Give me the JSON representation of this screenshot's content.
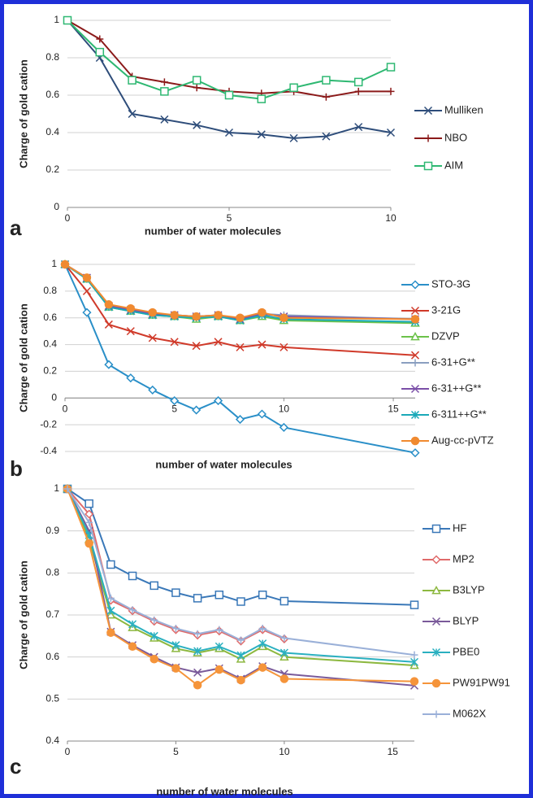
{
  "chart_data": [
    {
      "type": "line",
      "panel_label": "a",
      "x_label": "number of water molecules",
      "y_label": "Charge of gold cation",
      "x": [
        0,
        1,
        2,
        3,
        4,
        5,
        6,
        7,
        8,
        9,
        10
      ],
      "xlim": [
        0,
        10
      ],
      "xticks": [
        0,
        5,
        10
      ],
      "ylim": [
        0,
        1
      ],
      "yticks": [
        0,
        0.2,
        0.4,
        0.6,
        0.8,
        1
      ],
      "grid": true,
      "legend": "right",
      "series": [
        {
          "name": "Mulliken",
          "color": "#2e4d7a",
          "marker": "x",
          "values": [
            1,
            0.8,
            0.5,
            0.47,
            0.44,
            0.4,
            0.39,
            0.37,
            0.38,
            0.43,
            0.4
          ]
        },
        {
          "name": "NBO",
          "color": "#8b1a1a",
          "marker": "plus",
          "values": [
            1,
            0.9,
            0.7,
            0.67,
            0.64,
            0.62,
            0.61,
            0.62,
            0.59,
            0.62,
            0.62
          ]
        },
        {
          "name": "AIM",
          "color": "#2eb872",
          "marker": "square",
          "values": [
            1,
            0.83,
            0.68,
            0.62,
            0.68,
            0.6,
            0.58,
            0.64,
            0.68,
            0.67,
            0.75
          ]
        }
      ]
    },
    {
      "type": "line",
      "panel_label": "b",
      "x_label": "number of water molecules",
      "y_label": "Charge of gold cation",
      "x": [
        0,
        1,
        2,
        3,
        4,
        5,
        6,
        7,
        8,
        9,
        10,
        16
      ],
      "xlim": [
        0,
        16
      ],
      "xticks": [
        0,
        5,
        10,
        15
      ],
      "ylim": [
        -0.4,
        1
      ],
      "yticks": [
        -0.4,
        -0.2,
        0,
        0.2,
        0.4,
        0.6,
        0.8,
        1
      ],
      "grid": true,
      "legend": "right",
      "series": [
        {
          "name": "STO-3G",
          "color": "#2a8fc8",
          "marker": "diamond",
          "values": [
            1,
            0.64,
            0.25,
            0.15,
            0.06,
            -0.02,
            -0.09,
            -0.02,
            -0.16,
            -0.12,
            -0.22,
            -0.41
          ]
        },
        {
          "name": "3-21G",
          "color": "#d03a2a",
          "marker": "x",
          "values": [
            1,
            0.8,
            0.55,
            0.5,
            0.45,
            0.42,
            0.39,
            0.42,
            0.38,
            0.4,
            0.38,
            0.32
          ]
        },
        {
          "name": "DZVP",
          "color": "#6cc24a",
          "marker": "triangle",
          "values": [
            1,
            0.89,
            0.68,
            0.65,
            0.62,
            0.61,
            0.59,
            0.61,
            0.58,
            0.61,
            0.58,
            0.56
          ]
        },
        {
          "name": "6-31+G**",
          "color": "#8a9fc0",
          "marker": "plus",
          "values": [
            1,
            0.9,
            0.69,
            0.66,
            0.63,
            0.62,
            0.61,
            0.62,
            0.59,
            0.63,
            0.62,
            0.59
          ]
        },
        {
          "name": "6-31++G**",
          "color": "#7b4fa8",
          "marker": "x",
          "values": [
            1,
            0.9,
            0.69,
            0.66,
            0.63,
            0.62,
            0.61,
            0.62,
            0.59,
            0.63,
            0.61,
            0.59
          ]
        },
        {
          "name": "6-311++G**",
          "color": "#1aa9b8",
          "marker": "star",
          "values": [
            1,
            0.89,
            0.68,
            0.65,
            0.62,
            0.61,
            0.6,
            0.61,
            0.58,
            0.62,
            0.59,
            0.57
          ]
        },
        {
          "name": "Aug-cc-pVTZ",
          "color": "#f08a30",
          "marker": "circle",
          "values": [
            1,
            0.9,
            0.7,
            0.67,
            0.64,
            0.62,
            0.61,
            0.62,
            0.6,
            0.64,
            0.6,
            0.59
          ]
        }
      ]
    },
    {
      "type": "line",
      "panel_label": "c",
      "x_label": "number of water molecules",
      "y_label": "Charge of gold cation",
      "x": [
        0,
        1,
        2,
        3,
        4,
        5,
        6,
        7,
        8,
        9,
        10,
        16
      ],
      "xlim": [
        0,
        16
      ],
      "xticks": [
        0,
        5,
        10,
        15
      ],
      "ylim": [
        0.4,
        1
      ],
      "yticks": [
        0.4,
        0.5,
        0.6,
        0.7,
        0.8,
        0.9,
        1
      ],
      "grid": true,
      "legend": "right",
      "series": [
        {
          "name": "HF",
          "color": "#3a78b8",
          "marker": "square",
          "values": [
            1,
            0.965,
            0.82,
            0.793,
            0.77,
            0.753,
            0.74,
            0.748,
            0.732,
            0.748,
            0.733,
            0.724
          ]
        },
        {
          "name": "MP2",
          "color": "#e06a6a",
          "marker": "diamond",
          "values": [
            1,
            0.94,
            0.735,
            0.71,
            0.685,
            0.665,
            0.652,
            0.662,
            0.638,
            0.665,
            0.643,
            null
          ]
        },
        {
          "name": "B3LYP",
          "color": "#8db840",
          "marker": "triangle",
          "values": [
            1,
            0.88,
            0.7,
            0.67,
            0.645,
            0.62,
            0.61,
            0.62,
            0.595,
            0.625,
            0.6,
            0.58
          ]
        },
        {
          "name": "BLYP",
          "color": "#7a5a9a",
          "marker": "x",
          "values": [
            1,
            0.9,
            0.66,
            0.628,
            0.6,
            0.575,
            0.563,
            0.573,
            0.548,
            0.578,
            0.56,
            0.532
          ]
        },
        {
          "name": "PBE0",
          "color": "#2ab0c0",
          "marker": "star",
          "values": [
            1,
            0.89,
            0.71,
            0.678,
            0.65,
            0.628,
            0.614,
            0.625,
            0.604,
            0.632,
            0.61,
            0.588
          ]
        },
        {
          "name": "PW91PW91",
          "color": "#f5943a",
          "marker": "circle",
          "values": [
            1,
            0.87,
            0.658,
            0.625,
            0.595,
            0.573,
            0.533,
            0.57,
            0.545,
            0.575,
            0.548,
            0.542
          ]
        },
        {
          "name": "M062X",
          "color": "#9ab0d8",
          "marker": "plus",
          "values": [
            1,
            0.92,
            0.74,
            0.712,
            0.688,
            0.668,
            0.655,
            0.665,
            0.64,
            0.668,
            0.645,
            0.605
          ]
        }
      ]
    }
  ]
}
